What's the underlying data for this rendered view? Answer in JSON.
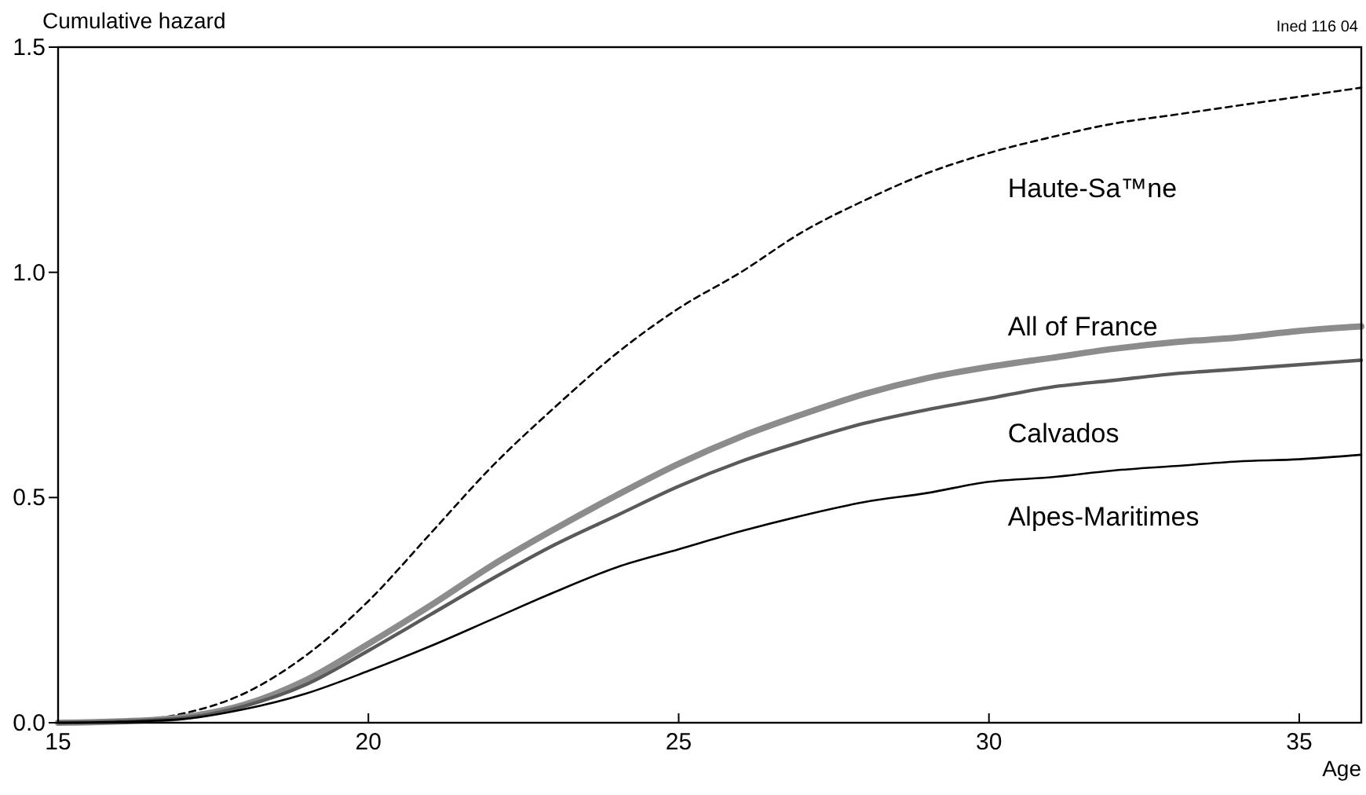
{
  "chart_data": {
    "type": "line",
    "ylabel": "Cumulative hazard",
    "xlabel": "Age",
    "annotations": [
      "Ined 116 04"
    ],
    "x": [
      15,
      16,
      17,
      18,
      19,
      20,
      21,
      22,
      23,
      24,
      25,
      26,
      27,
      28,
      29,
      30,
      31,
      32,
      33,
      34,
      35,
      36
    ],
    "xlim": [
      15,
      36
    ],
    "xticks": [
      15,
      20,
      25,
      30,
      35
    ],
    "ylim": [
      0,
      1.5
    ],
    "yticks": [
      {
        "value": 0,
        "label": "0.0"
      },
      {
        "value": 0.5,
        "label": "0.5"
      },
      {
        "value": 1,
        "label": "1.0"
      },
      {
        "value": 1.5,
        "label": "1.5"
      }
    ],
    "grid": false,
    "marker": "none",
    "series": [
      {
        "name": "Haute-Sa™ne",
        "color": "#000000",
        "line_style": "dashed",
        "values": [
          0,
          0.003,
          0.02,
          0.065,
          0.15,
          0.27,
          0.42,
          0.57,
          0.7,
          0.82,
          0.92,
          1.0,
          1.09,
          1.16,
          1.22,
          1.265,
          1.3,
          1.33,
          1.35,
          1.37,
          1.39,
          1.41
        ]
      },
      {
        "name": "All of France",
        "color": "#8c8c8c",
        "line_style": "solid",
        "values": [
          0,
          0.003,
          0.012,
          0.04,
          0.095,
          0.175,
          0.26,
          0.35,
          0.43,
          0.505,
          0.575,
          0.635,
          0.685,
          0.73,
          0.765,
          0.79,
          0.81,
          0.83,
          0.845,
          0.855,
          0.87,
          0.88
        ]
      },
      {
        "name": "Calvados",
        "color": "#5a5a5a",
        "line_style": "solid",
        "values": [
          0,
          0.003,
          0.01,
          0.037,
          0.085,
          0.16,
          0.24,
          0.32,
          0.395,
          0.46,
          0.525,
          0.58,
          0.625,
          0.665,
          0.695,
          0.72,
          0.745,
          0.76,
          0.775,
          0.785,
          0.795,
          0.805
        ]
      },
      {
        "name": "Alpes-Maritimes",
        "color": "#000000",
        "line_style": "solid",
        "values": [
          0,
          0.002,
          0.008,
          0.03,
          0.065,
          0.115,
          0.17,
          0.23,
          0.29,
          0.345,
          0.385,
          0.425,
          0.46,
          0.49,
          0.51,
          0.535,
          0.545,
          0.56,
          0.57,
          0.58,
          0.585,
          0.595
        ]
      }
    ]
  }
}
